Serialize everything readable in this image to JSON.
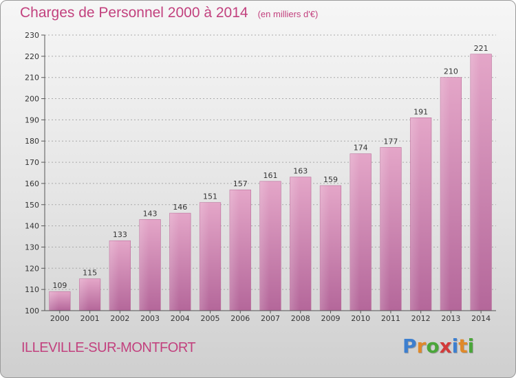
{
  "chart_data": {
    "type": "bar",
    "title": "Charges de Personnel 2000 à 2014",
    "subtitle": "(en milliers d'€)",
    "categories": [
      "2000",
      "2001",
      "2002",
      "2003",
      "2004",
      "2005",
      "2006",
      "2007",
      "2008",
      "2009",
      "2010",
      "2011",
      "2012",
      "2013",
      "2014"
    ],
    "values": [
      109,
      115,
      133,
      143,
      146,
      151,
      157,
      161,
      163,
      159,
      174,
      177,
      191,
      210,
      221
    ],
    "ylim": [
      100,
      230
    ],
    "yticks": [
      100,
      110,
      120,
      130,
      140,
      150,
      160,
      170,
      180,
      190,
      200,
      210,
      220,
      230
    ],
    "grid": true,
    "bar_color": "#cc6fa3"
  },
  "footer": {
    "city": "ILLEVILLE-SUR-MONTFORT",
    "logo": "Proxiti",
    "logo_colors": [
      "#3d7fcf",
      "#e0892a",
      "#4aa63a",
      "#d23a3a",
      "#3d7fcf",
      "#e0892a",
      "#4aa63a"
    ]
  }
}
